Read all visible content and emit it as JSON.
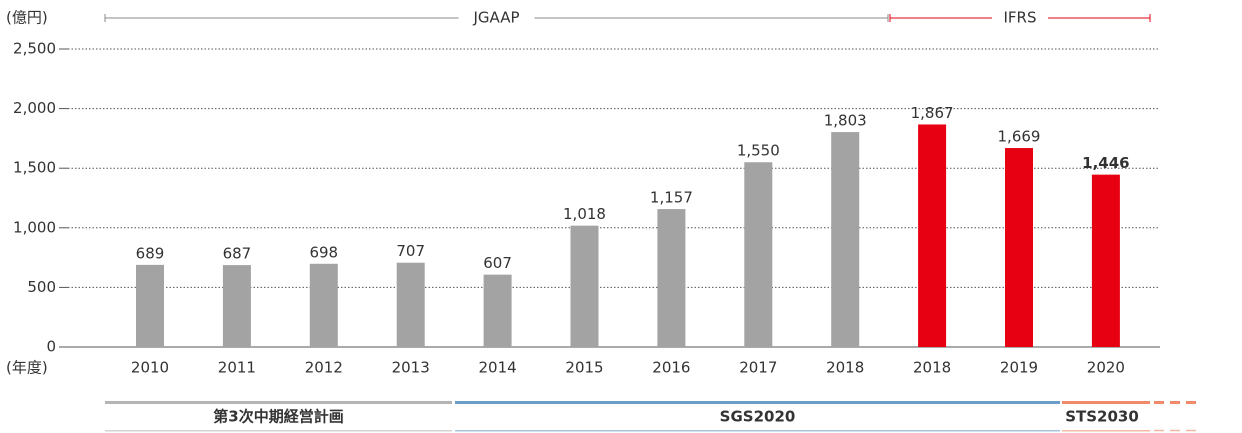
{
  "chart_data": {
    "type": "bar",
    "y_axis_label": "(億円)",
    "x_axis_label": "(年度)",
    "categories": [
      "2010",
      "2011",
      "2012",
      "2013",
      "2014",
      "2015",
      "2016",
      "2017",
      "2018",
      "2018",
      "2019",
      "2020"
    ],
    "values": [
      689,
      687,
      698,
      707,
      607,
      1018,
      1157,
      1550,
      1803,
      1867,
      1669,
      1446
    ],
    "value_labels": [
      "689",
      "687",
      "698",
      "707",
      "607",
      "1,018",
      "1,157",
      "1,550",
      "1,803",
      "1,867",
      "1,669",
      "1,446"
    ],
    "colors": [
      "#a3a3a3",
      "#a3a3a3",
      "#a3a3a3",
      "#a3a3a3",
      "#a3a3a3",
      "#a3a3a3",
      "#a3a3a3",
      "#a3a3a3",
      "#a3a3a3",
      "#e60012",
      "#e60012",
      "#e60012"
    ],
    "ylim": [
      0,
      2500
    ],
    "yticks": [
      0,
      {
        "value": 500,
        "label": "500"
      },
      {
        "value": 1000,
        "label": "1,000"
      },
      {
        "value": 1500,
        "label": "1,500"
      },
      {
        "value": 2000,
        "label": "2,000"
      },
      {
        "value": 2500,
        "label": "2,500"
      }
    ],
    "grid": true,
    "accounting_periods": [
      {
        "label": "JGAAP",
        "color": "#888888"
      },
      {
        "label": "IFRS",
        "color": "#e60012"
      }
    ],
    "plans": [
      {
        "label": "第3次中期経営計画",
        "color": "#b5b5b5"
      },
      {
        "label": "SGS2020",
        "color": "#6a9ec9"
      },
      {
        "label": "STS2030",
        "color": "#f08a6a"
      }
    ]
  }
}
